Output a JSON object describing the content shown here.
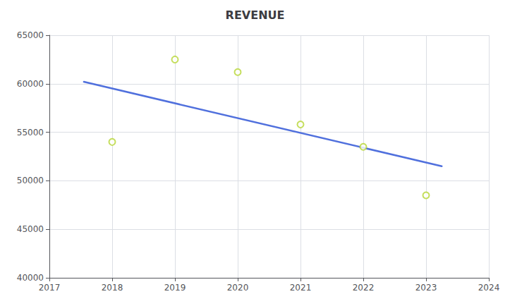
{
  "chart_data": {
    "type": "scatter",
    "title": "REVENUE",
    "series": [
      {
        "type": "line",
        "x": [
          2017.55,
          2023.25
        ],
        "values": [
          60200,
          51500
        ]
      },
      {
        "type": "scatter",
        "marker": "open_circle",
        "x": [
          2018,
          2019,
          2020,
          2021,
          2022,
          2023
        ],
        "values": [
          54000,
          62500,
          61200,
          55800,
          53500,
          48500
        ]
      }
    ],
    "xlim": [
      2017,
      2024
    ],
    "xticks": [
      2017,
      2018,
      2019,
      2020,
      2021,
      2022,
      2023,
      2024
    ],
    "ylim": [
      40000,
      65000
    ],
    "yticks": [
      40000,
      45000,
      50000,
      55000,
      60000,
      65000
    ],
    "grid": true
  }
}
